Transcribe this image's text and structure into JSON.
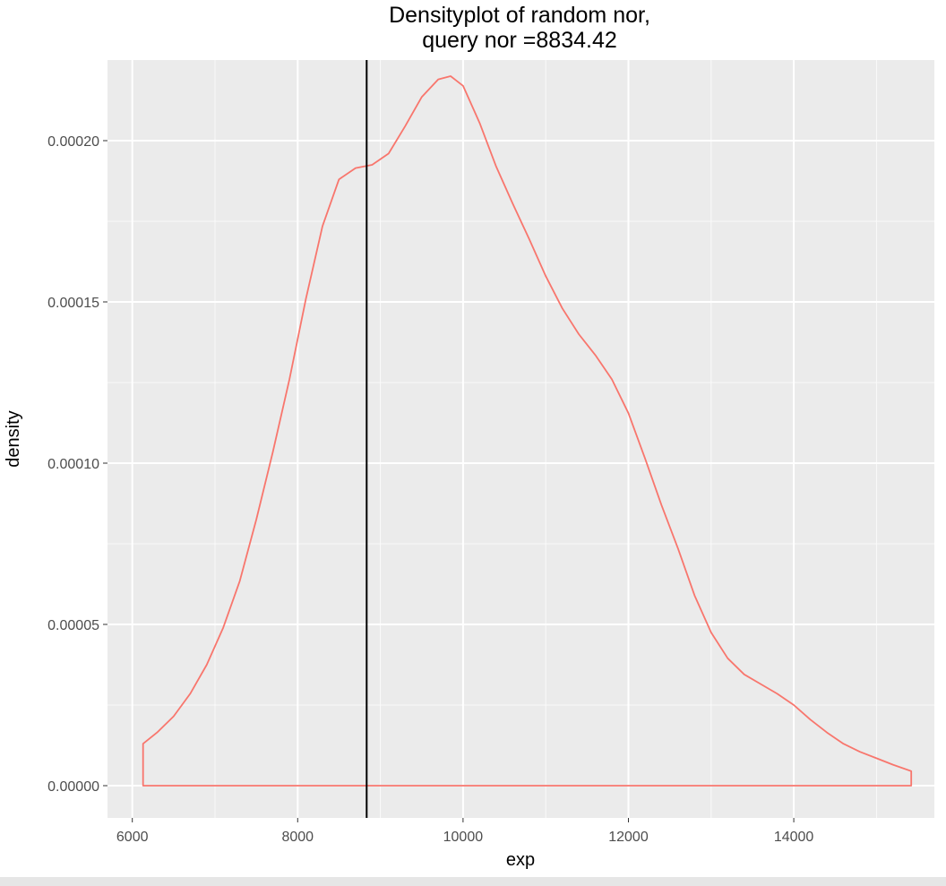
{
  "chart_data": {
    "type": "area",
    "title_lines": [
      "Densityplot of random nor,",
      "query nor =8834.42"
    ],
    "xlabel": "exp",
    "ylabel": "density",
    "xlim": [
      5700,
      15700
    ],
    "ylim": [
      -1e-05,
      0.000225
    ],
    "x_major_ticks": [
      6000,
      8000,
      10000,
      12000,
      14000
    ],
    "x_tick_labels": [
      "6000",
      "8000",
      "10000",
      "12000",
      "14000"
    ],
    "x_minor_ticks": [
      7000,
      9000,
      11000,
      13000,
      15000
    ],
    "y_major_ticks": [
      0,
      5e-05,
      0.0001,
      0.00015,
      0.0002
    ],
    "y_tick_labels": [
      "0.00000",
      "0.00005",
      "0.00010",
      "0.00015",
      "0.00020"
    ],
    "y_minor_ticks": [
      2.5e-05,
      7.5e-05,
      0.000125,
      0.000175
    ],
    "grid": true,
    "legend": "none",
    "vline": {
      "x": 8834.42,
      "color": "#000000"
    },
    "series": [
      {
        "color": "#f8766d",
        "x": [
          6130,
          6130,
          6300,
          6500,
          6700,
          6900,
          7100,
          7300,
          7500,
          7700,
          7900,
          8100,
          8300,
          8500,
          8700,
          8900,
          9100,
          9300,
          9500,
          9700,
          9850,
          10000,
          10200,
          10400,
          10600,
          10800,
          11000,
          11200,
          11400,
          11600,
          11800,
          12000,
          12200,
          12400,
          12600,
          12800,
          13000,
          13200,
          13400,
          13600,
          13800,
          14000,
          14200,
          14400,
          14600,
          14800,
          15000,
          15200,
          15420,
          15420
        ],
        "y": [
          0,
          1.3e-05,
          1.65e-05,
          2.15e-05,
          2.85e-05,
          3.75e-05,
          4.9e-05,
          6.35e-05,
          8.25e-05,
          0.0001035,
          0.000126,
          0.000151,
          0.0001735,
          0.000188,
          0.0001915,
          0.0001925,
          0.000196,
          0.0002045,
          0.0002135,
          0.000219,
          0.00022,
          0.000217,
          0.0002055,
          0.000192,
          0.0001805,
          0.0001695,
          0.000158,
          0.000148,
          0.00014,
          0.0001335,
          0.000126,
          0.0001155,
          0.0001015,
          8.7e-05,
          7.35e-05,
          5.9e-05,
          4.75e-05,
          3.95e-05,
          3.45e-05,
          3.15e-05,
          2.85e-05,
          2.5e-05,
          2.05e-05,
          1.65e-05,
          1.3e-05,
          1.05e-05,
          8.5e-06,
          6.5e-06,
          4.5e-06,
          0
        ]
      }
    ]
  }
}
